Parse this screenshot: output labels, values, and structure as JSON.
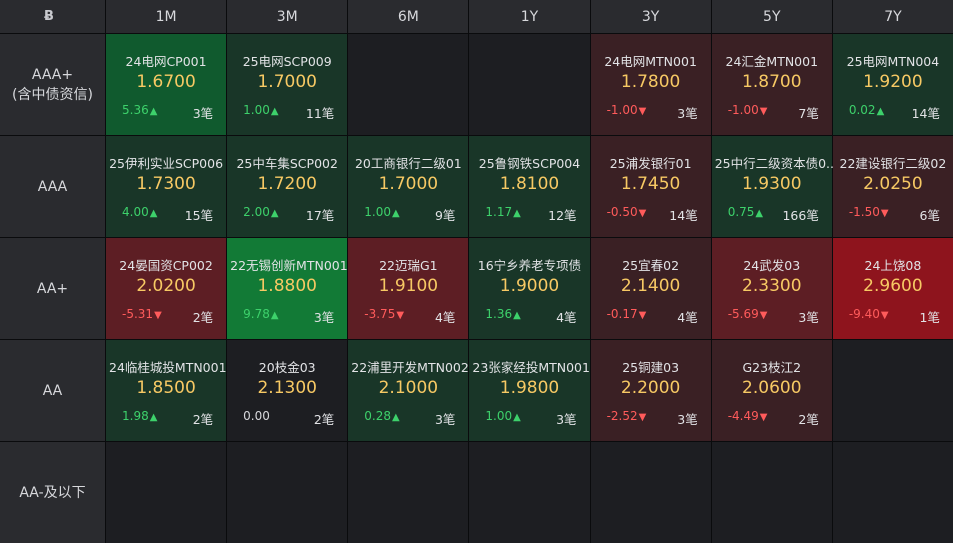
{
  "header": {
    "corner_icon": "logo-icon",
    "tenors": [
      "1M",
      "3M",
      "6M",
      "1Y",
      "3Y",
      "5Y",
      "7Y"
    ]
  },
  "ratings": [
    "AAA+\n(含中债资信)",
    "AAA",
    "AA+",
    "AA",
    "AA-及以下"
  ],
  "colors": {
    "up": "#3dd16b",
    "down": "#ff5b5b",
    "yield": "#f7c964"
  },
  "rows": [
    [
      {
        "bond": "24电网CP001",
        "yield": "1.6700",
        "change": "5.36",
        "dir": "up",
        "count": "3笔",
        "tone": "g2"
      },
      {
        "bond": "25电网SCP009",
        "yield": "1.7000",
        "change": "1.00",
        "dir": "up",
        "count": "11笔",
        "tone": "g1"
      },
      null,
      null,
      {
        "bond": "24电网MTN001",
        "yield": "1.7800",
        "change": "-1.00",
        "dir": "down",
        "count": "3笔",
        "tone": "r1"
      },
      {
        "bond": "24汇金MTN001",
        "yield": "1.8700",
        "change": "-1.00",
        "dir": "down",
        "count": "7笔",
        "tone": "r1"
      },
      {
        "bond": "25电网MTN004",
        "yield": "1.9200",
        "change": "0.02",
        "dir": "up",
        "count": "14笔",
        "tone": "g1"
      }
    ],
    [
      {
        "bond": "25伊利实业SCP006",
        "yield": "1.7300",
        "change": "4.00",
        "dir": "up",
        "count": "15笔",
        "tone": "g1"
      },
      {
        "bond": "25中车集SCP002",
        "yield": "1.7200",
        "change": "2.00",
        "dir": "up",
        "count": "17笔",
        "tone": "g1"
      },
      {
        "bond": "20工商银行二级01",
        "yield": "1.7000",
        "change": "1.00",
        "dir": "up",
        "count": "9笔",
        "tone": "g1"
      },
      {
        "bond": "25鲁钢铁SCP004",
        "yield": "1.8100",
        "change": "1.17",
        "dir": "up",
        "count": "12笔",
        "tone": "g1"
      },
      {
        "bond": "25浦发银行01",
        "yield": "1.7450",
        "change": "-0.50",
        "dir": "down",
        "count": "14笔",
        "tone": "r1"
      },
      {
        "bond": "25中行二级资本债0...",
        "yield": "1.9300",
        "change": "0.75",
        "dir": "up",
        "count": "166笔",
        "tone": "g1"
      },
      {
        "bond": "22建设银行二级02",
        "yield": "2.0250",
        "change": "-1.50",
        "dir": "down",
        "count": "6笔",
        "tone": "r1"
      }
    ],
    [
      {
        "bond": "24晏国资CP002",
        "yield": "2.0200",
        "change": "-5.31",
        "dir": "down",
        "count": "2笔",
        "tone": "r2"
      },
      {
        "bond": "22无锡创新MTN001",
        "yield": "1.8800",
        "change": "9.78",
        "dir": "up",
        "count": "3笔",
        "tone": "g3"
      },
      {
        "bond": "22迈瑞G1",
        "yield": "1.9100",
        "change": "-3.75",
        "dir": "down",
        "count": "4笔",
        "tone": "r2"
      },
      {
        "bond": "16宁乡养老专项债",
        "yield": "1.9000",
        "change": "1.36",
        "dir": "up",
        "count": "4笔",
        "tone": "g1"
      },
      {
        "bond": "25宜春02",
        "yield": "2.1400",
        "change": "-0.17",
        "dir": "down",
        "count": "4笔",
        "tone": "r1"
      },
      {
        "bond": "24武发03",
        "yield": "2.3300",
        "change": "-5.69",
        "dir": "down",
        "count": "3笔",
        "tone": "r2"
      },
      {
        "bond": "24上饶08",
        "yield": "2.9600",
        "change": "-9.40",
        "dir": "down",
        "count": "1笔",
        "tone": "r3"
      }
    ],
    [
      {
        "bond": "24临桂城投MTN001",
        "yield": "1.8500",
        "change": "1.98",
        "dir": "up",
        "count": "2笔",
        "tone": "g1"
      },
      {
        "bond": "20枝金03",
        "yield": "2.1300",
        "change": "0.00",
        "dir": "flat",
        "count": "2笔",
        "tone": ""
      },
      {
        "bond": "22浦里开发MTN002",
        "yield": "2.1000",
        "change": "0.28",
        "dir": "up",
        "count": "3笔",
        "tone": "g1"
      },
      {
        "bond": "23张家经投MTN001",
        "yield": "1.9800",
        "change": "1.00",
        "dir": "up",
        "count": "3笔",
        "tone": "g1"
      },
      {
        "bond": "25铜建03",
        "yield": "2.2000",
        "change": "-2.52",
        "dir": "down",
        "count": "3笔",
        "tone": "r1"
      },
      {
        "bond": "G23枝江2",
        "yield": "2.0600",
        "change": "-4.49",
        "dir": "down",
        "count": "2笔",
        "tone": "r1"
      },
      null
    ],
    [
      null,
      null,
      null,
      null,
      null,
      null,
      null
    ]
  ]
}
